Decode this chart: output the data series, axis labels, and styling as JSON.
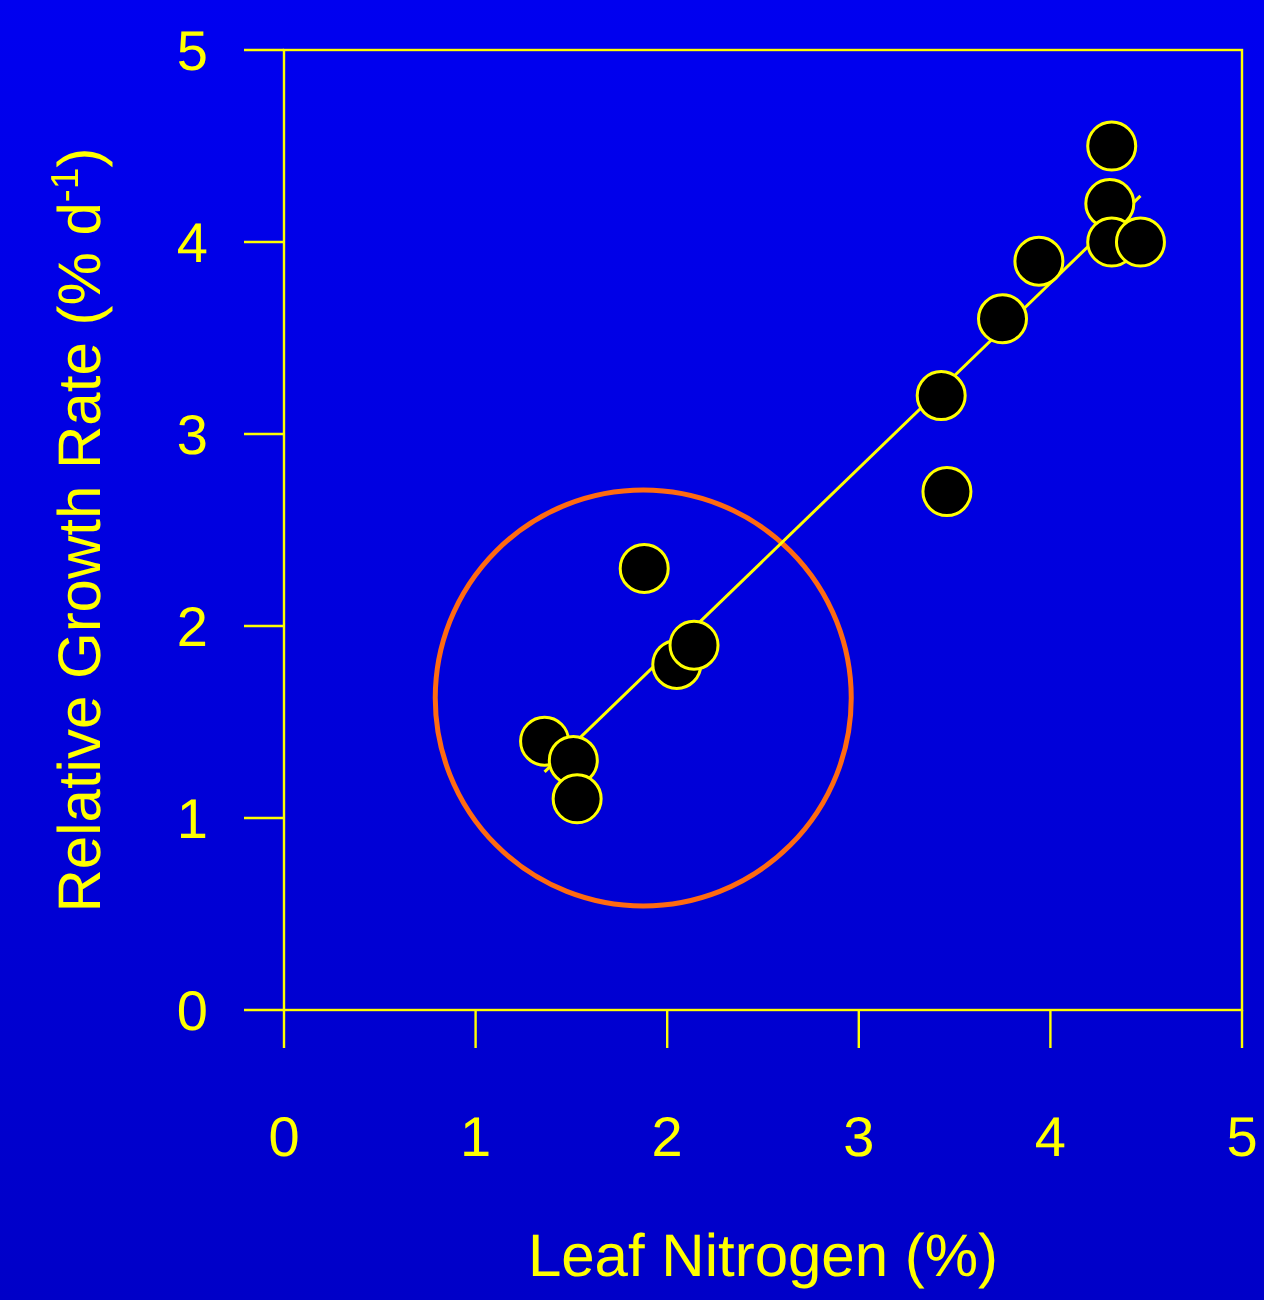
{
  "chart_data": {
    "type": "scatter",
    "xlabel": "Leaf Nitrogen (%)",
    "ylabel": "Relative Growth Rate (% d$^{-1}$)",
    "xlim": [
      0,
      5
    ],
    "ylim": [
      0,
      5
    ],
    "xticks": [
      0,
      1,
      2,
      3,
      4,
      5
    ],
    "yticks": [
      0,
      1,
      2,
      3,
      4,
      5
    ],
    "grid": false,
    "series": [
      {
        "marker": "circle",
        "color": "#000000",
        "x": [
          1.36,
          1.51,
          1.53,
          1.88,
          2.05,
          2.14,
          3.43,
          3.46,
          3.75,
          3.94,
          4.32,
          4.31,
          4.32,
          4.47
        ],
        "values": [
          1.4,
          1.3,
          1.1,
          2.3,
          1.8,
          1.9,
          3.2,
          2.7,
          3.6,
          3.9,
          4.5,
          4.2,
          4.0,
          4.0
        ]
      },
      {
        "type": "line",
        "marker": "none",
        "color": "#ffff00",
        "line_style": "solid",
        "x": [
          1.36,
          4.47
        ],
        "values": [
          1.24,
          4.24
        ]
      }
    ]
  }
}
